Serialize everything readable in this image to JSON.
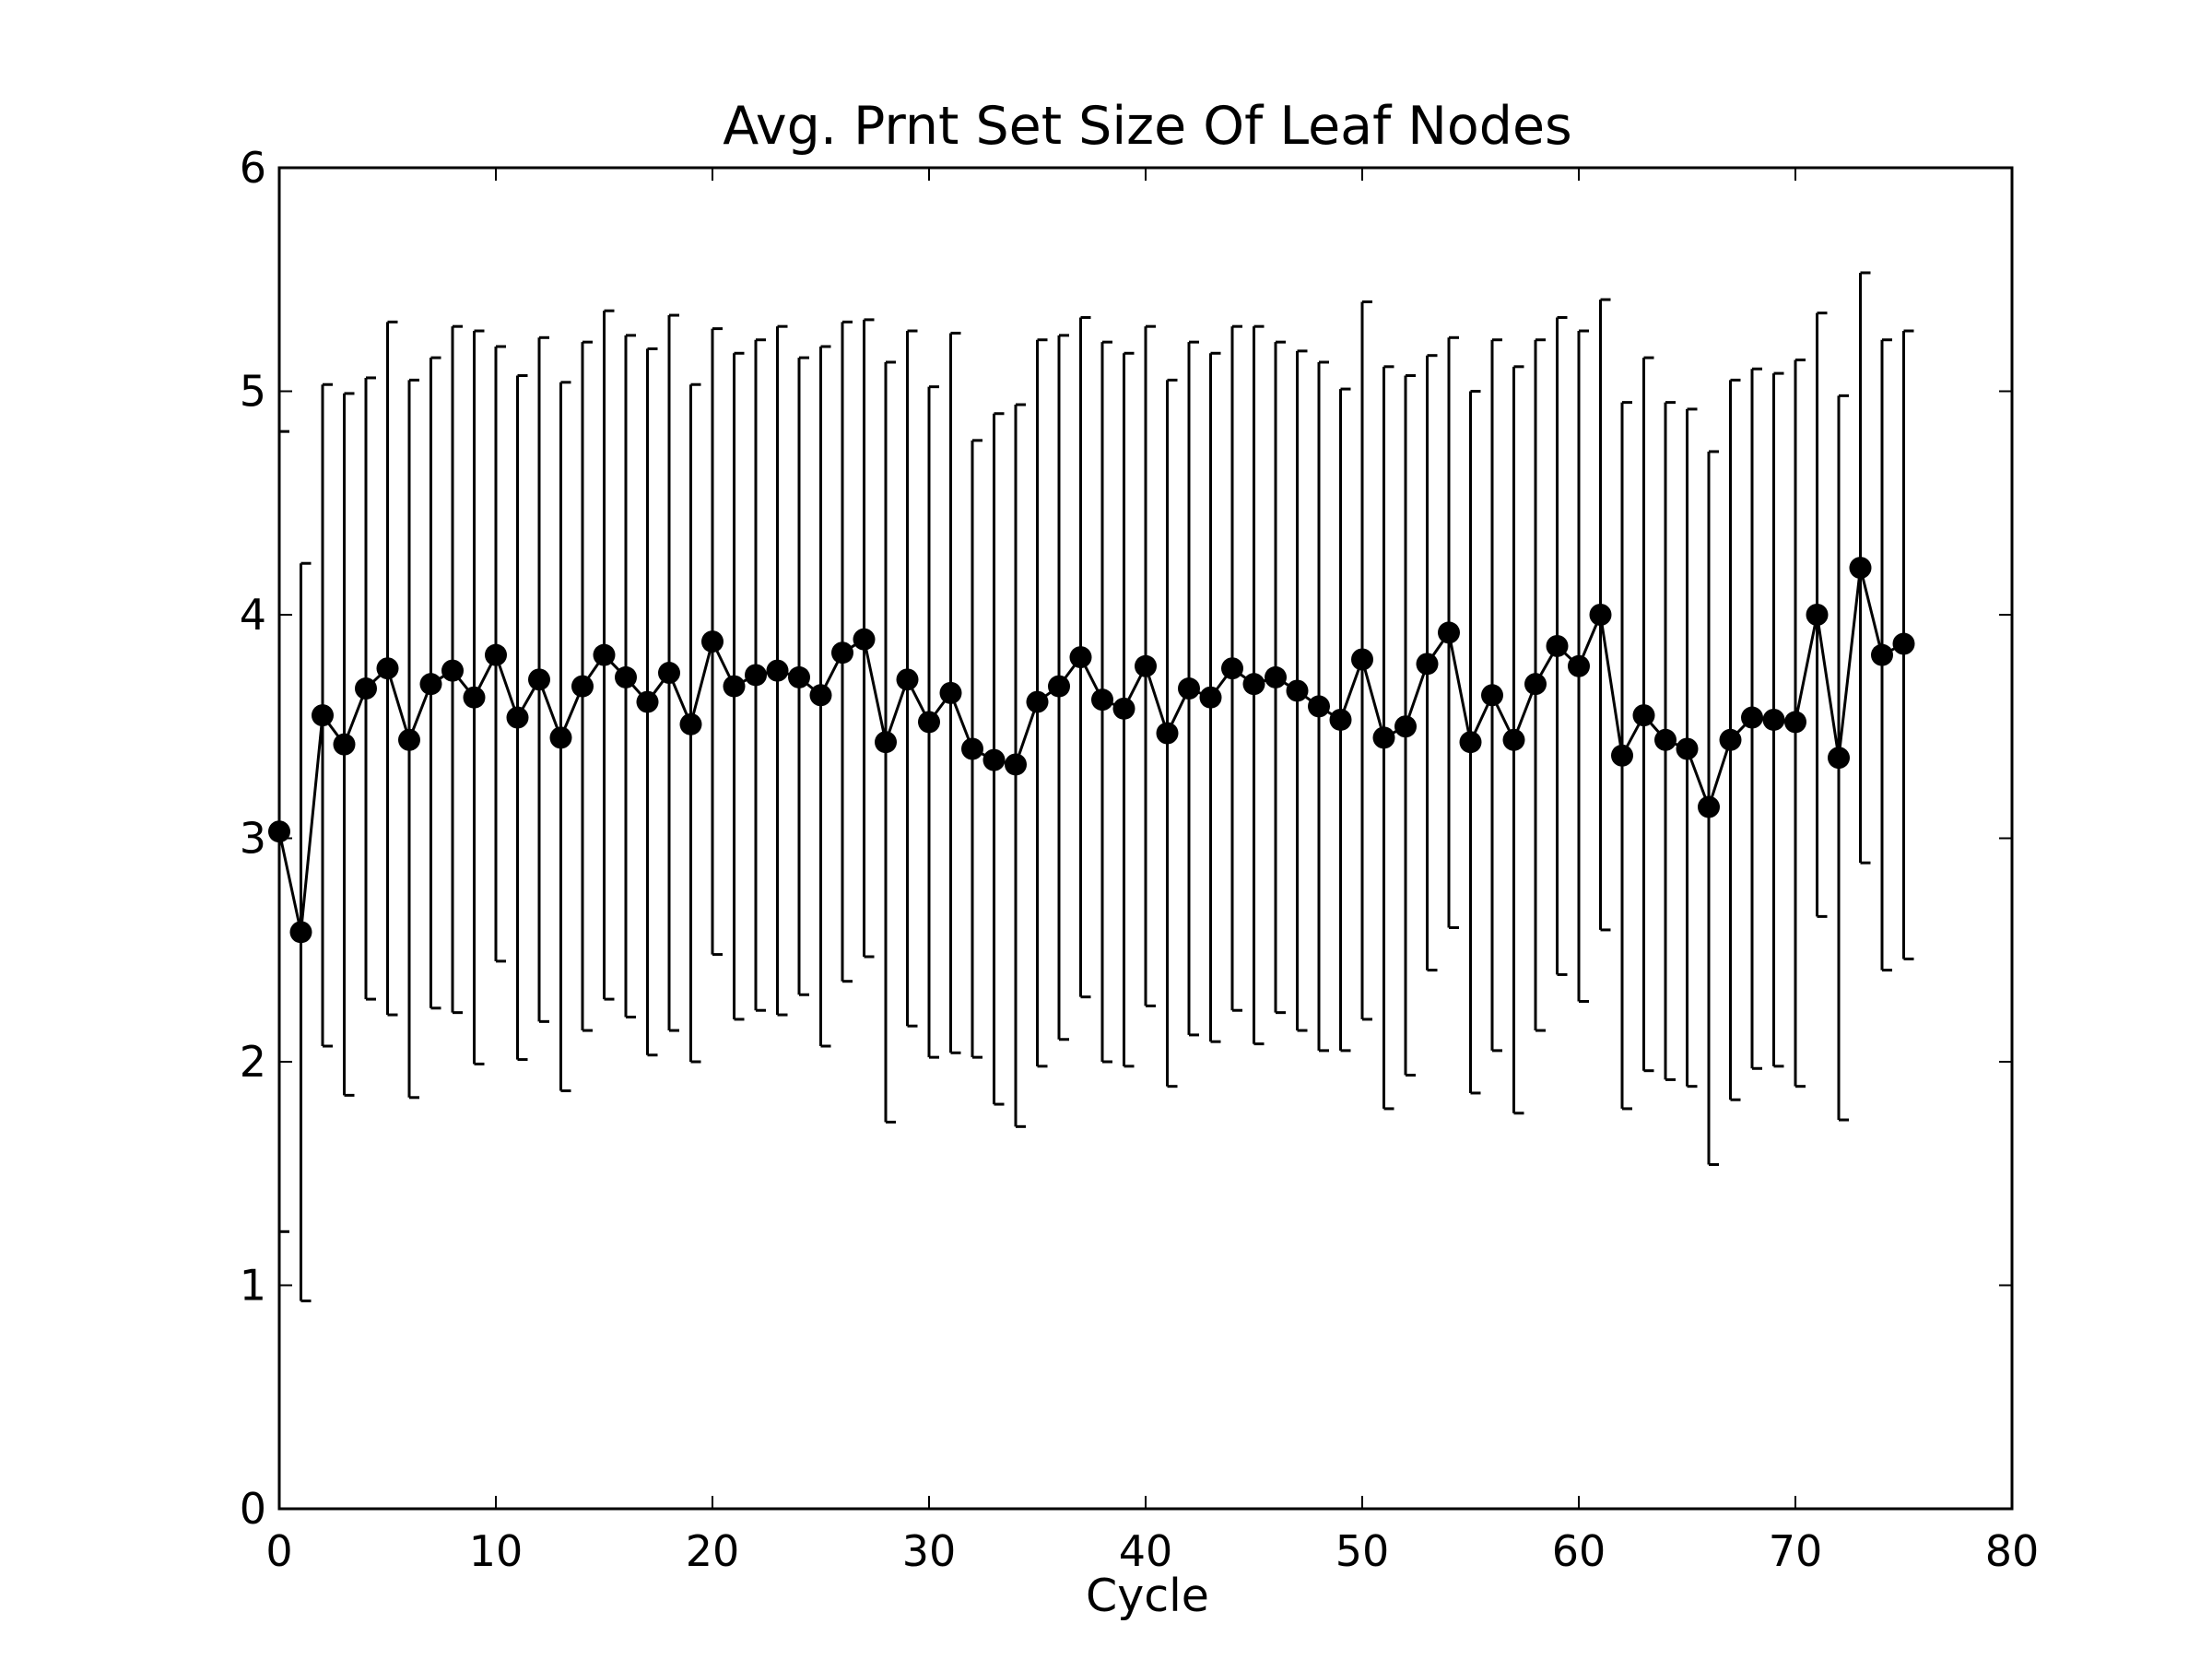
{
  "chart_data": {
    "type": "line",
    "title": "Avg. Prnt Set Size Of Leaf Nodes",
    "xlabel": "Cycle",
    "ylabel": "",
    "xlim": [
      0,
      80
    ],
    "ylim": [
      0,
      6
    ],
    "xticks": [
      "0",
      "10",
      "20",
      "30",
      "40",
      "50",
      "60",
      "70",
      "80"
    ],
    "yticks": [
      "0",
      "1",
      "2",
      "3",
      "4",
      "5",
      "6"
    ],
    "grid": false,
    "colors": {
      "line": "#000000",
      "marker": "#000000"
    },
    "x": [
      0,
      1,
      2,
      3,
      4,
      5,
      6,
      7,
      8,
      9,
      10,
      11,
      12,
      13,
      14,
      15,
      16,
      17,
      18,
      19,
      20,
      21,
      22,
      23,
      24,
      25,
      26,
      27,
      28,
      29,
      30,
      31,
      32,
      33,
      34,
      35,
      36,
      37,
      38,
      39,
      40,
      41,
      42,
      43,
      44,
      45,
      46,
      47,
      48,
      49,
      50,
      51,
      52,
      53,
      54,
      55,
      56,
      57,
      58,
      59,
      60,
      61,
      62,
      63,
      64,
      65,
      66,
      67,
      68,
      69,
      70,
      71,
      72,
      73,
      74,
      75
    ],
    "series": [
      {
        "values": [
          3.03,
          2.58,
          3.55,
          3.42,
          3.67,
          3.76,
          3.44,
          3.69,
          3.75,
          3.63,
          3.82,
          3.54,
          3.71,
          3.45,
          3.68,
          3.82,
          3.72,
          3.61,
          3.74,
          3.51,
          3.88,
          3.68,
          3.73,
          3.75,
          3.72,
          3.64,
          3.83,
          3.89,
          3.43,
          3.71,
          3.52,
          3.65,
          3.4,
          3.35,
          3.33,
          3.61,
          3.68,
          3.81,
          3.62,
          3.58,
          3.77,
          3.47,
          3.67,
          3.63,
          3.76,
          3.69,
          3.72,
          3.66,
          3.59,
          3.53,
          3.8,
          3.45,
          3.5,
          3.78,
          3.92,
          3.43,
          3.64,
          3.44,
          3.69,
          3.86,
          3.77,
          4.0,
          3.37,
          3.55,
          3.44,
          3.4,
          3.14,
          3.44,
          3.54,
          3.53,
          3.52,
          4.0,
          3.36,
          4.21,
          3.82,
          3.87
        ],
        "err_low": [
          1.24,
          0.93,
          2.07,
          1.85,
          2.28,
          2.21,
          1.84,
          2.24,
          2.22,
          1.99,
          2.45,
          2.01,
          2.18,
          1.87,
          2.14,
          2.28,
          2.2,
          2.03,
          2.14,
          2.0,
          2.48,
          2.19,
          2.23,
          2.21,
          2.3,
          2.07,
          2.36,
          2.47,
          1.73,
          2.16,
          2.02,
          2.04,
          2.02,
          1.81,
          1.71,
          1.98,
          2.1,
          2.29,
          2.0,
          1.98,
          2.25,
          1.89,
          2.12,
          2.09,
          2.23,
          2.08,
          2.22,
          2.14,
          2.05,
          2.05,
          2.19,
          1.79,
          1.94,
          2.41,
          2.6,
          1.86,
          2.05,
          1.77,
          2.14,
          2.39,
          2.27,
          2.59,
          1.79,
          1.96,
          1.92,
          1.89,
          1.54,
          1.83,
          1.97,
          1.98,
          1.89,
          2.65,
          1.74,
          2.89,
          2.41,
          2.46
        ],
        "err_high": [
          4.82,
          4.23,
          5.03,
          4.99,
          5.06,
          5.31,
          5.05,
          5.15,
          5.29,
          5.27,
          5.2,
          5.07,
          5.24,
          5.04,
          5.22,
          5.36,
          5.25,
          5.19,
          5.34,
          5.03,
          5.28,
          5.17,
          5.23,
          5.29,
          5.15,
          5.2,
          5.31,
          5.32,
          5.13,
          5.27,
          5.02,
          5.26,
          4.78,
          4.9,
          4.94,
          5.23,
          5.25,
          5.33,
          5.22,
          5.17,
          5.29,
          5.05,
          5.22,
          5.17,
          5.29,
          5.29,
          5.22,
          5.18,
          5.13,
          5.01,
          5.4,
          5.11,
          5.07,
          5.16,
          5.24,
          5.0,
          5.23,
          5.11,
          5.23,
          5.33,
          5.27,
          5.41,
          4.95,
          5.15,
          4.95,
          4.92,
          4.73,
          5.05,
          5.1,
          5.08,
          5.14,
          5.35,
          4.98,
          5.53,
          5.23,
          5.27
        ]
      }
    ]
  }
}
